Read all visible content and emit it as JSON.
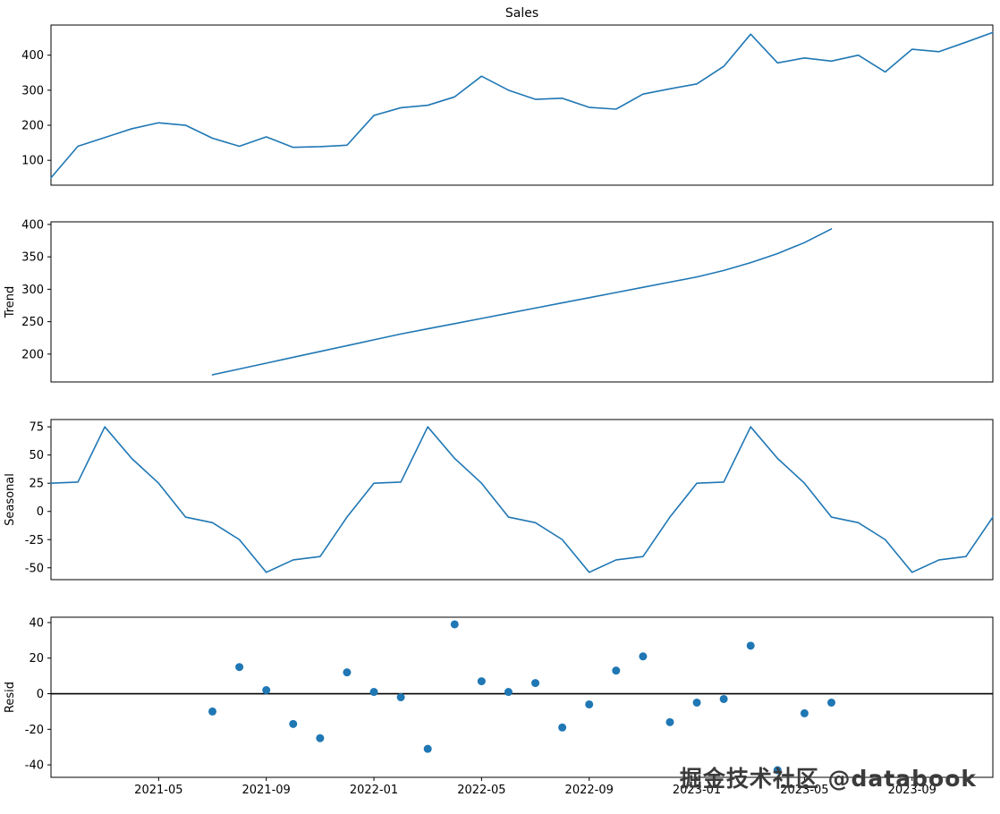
{
  "figure": {
    "title": "Sales",
    "background": "#ffffff"
  },
  "watermark": "掘金技术社区 @databook",
  "colors": {
    "series": "#1f77b4",
    "axis": "#000000",
    "zero_line": "#000000",
    "text": "#000000"
  },
  "x_axis": {
    "months": [
      "2021-01",
      "2021-02",
      "2021-03",
      "2021-04",
      "2021-05",
      "2021-06",
      "2021-07",
      "2021-08",
      "2021-09",
      "2021-10",
      "2021-11",
      "2021-12",
      "2022-01",
      "2022-02",
      "2022-03",
      "2022-04",
      "2022-05",
      "2022-06",
      "2022-07",
      "2022-08",
      "2022-09",
      "2022-10",
      "2022-11",
      "2022-12",
      "2023-01",
      "2023-02",
      "2023-03",
      "2023-04",
      "2023-05",
      "2023-06",
      "2023-07",
      "2023-08",
      "2023-09",
      "2023-10",
      "2023-11",
      "2023-12"
    ],
    "tick_labels": [
      "2021-05",
      "2021-09",
      "2022-01",
      "2022-05",
      "2022-09",
      "2023-01",
      "2023-05",
      "2023-09"
    ],
    "tick_month_indices": [
      4,
      8,
      12,
      16,
      20,
      24,
      28,
      32
    ]
  },
  "chart_data": [
    {
      "type": "line",
      "panel": "observed",
      "title": "Sales",
      "ylabel": "",
      "start_month_index": 0,
      "values": [
        50,
        140,
        165,
        190,
        207,
        200,
        163,
        140,
        167,
        137,
        139,
        143,
        228,
        250,
        257,
        281,
        340,
        300,
        274,
        277,
        251,
        246,
        289,
        304,
        318,
        368,
        460,
        378,
        392,
        383,
        400,
        352,
        417,
        410,
        437,
        465
      ],
      "yticks": [
        100,
        200,
        300,
        400
      ],
      "ylim": [
        29,
        486
      ],
      "grid": false,
      "legend": false
    },
    {
      "type": "line",
      "panel": "trend",
      "title": "",
      "ylabel": "Trend",
      "start_month_index": 6,
      "values": [
        168,
        177,
        186,
        195,
        204,
        213,
        222,
        231,
        239,
        247,
        255,
        263,
        271,
        279,
        287,
        295,
        303,
        311,
        319,
        329,
        341,
        355,
        372,
        393
      ],
      "yticks": [
        200,
        250,
        300,
        350,
        400
      ],
      "ylim": [
        157,
        404
      ],
      "grid": false,
      "legend": false
    },
    {
      "type": "line",
      "panel": "seasonal",
      "title": "",
      "ylabel": "Seasonal",
      "start_month_index": 0,
      "seasonal_pattern_jan_to_dec": [
        25,
        26,
        75,
        47,
        25,
        -5,
        -10,
        -25,
        -54,
        -43,
        -40,
        -5
      ],
      "values": [
        25,
        26,
        75,
        47,
        25,
        -5,
        -10,
        -25,
        -54,
        -43,
        -40,
        -5,
        25,
        26,
        75,
        47,
        25,
        -5,
        -10,
        -25,
        -54,
        -43,
        -40,
        -5,
        25,
        26,
        75,
        47,
        25,
        -5,
        -10,
        -25,
        -54,
        -43,
        -40,
        -5
      ],
      "yticks": [
        -50,
        -25,
        0,
        25,
        50,
        75
      ],
      "ylim": [
        -60.5,
        81.5
      ],
      "grid": false,
      "legend": false
    },
    {
      "type": "scatter",
      "panel": "resid",
      "title": "",
      "ylabel": "Resid",
      "start_month_index": 6,
      "values": [
        -10,
        15,
        2,
        -17,
        -25,
        12,
        1,
        -2,
        -31,
        39,
        7,
        1,
        6,
        -19,
        -6,
        13,
        21,
        -16,
        -5,
        -3,
        27,
        -43,
        -11,
        -5
      ],
      "yticks": [
        -40,
        -20,
        0,
        20,
        40
      ],
      "ylim": [
        -47,
        43
      ],
      "zero_line": 0,
      "grid": false,
      "legend": false
    }
  ]
}
